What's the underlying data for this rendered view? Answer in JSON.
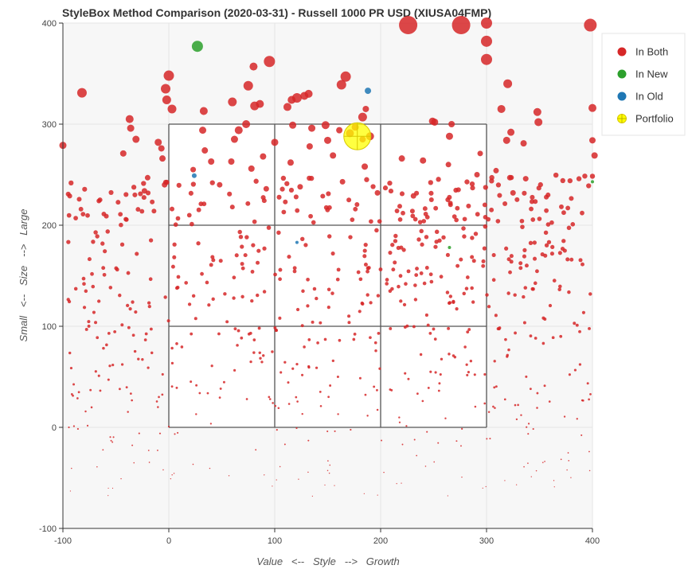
{
  "chart_data": {
    "type": "scatter",
    "title": "StyleBox Method Comparison (2020-03-31) - Russell 1000 PR USD (XIUSA04FMP)",
    "xlabel": "Value   <--   Style   -->   Growth",
    "ylabel": "Small   <--   Size   -->   Large",
    "xlim": [
      -100,
      400
    ],
    "ylim": [
      -100,
      400
    ],
    "xticks": [
      "-100",
      "0",
      "100",
      "200",
      "300",
      "400"
    ],
    "yticks": [
      "-100",
      "0",
      "100",
      "200",
      "300",
      "400"
    ],
    "grid": true,
    "legend_position": "right",
    "stylebox": {
      "x": [
        0,
        100,
        200,
        300
      ],
      "y": [
        0,
        100,
        200,
        300
      ]
    },
    "series": [
      {
        "name": "In Both",
        "color": "#d62728",
        "points": [
          [
            -82,
            331,
            6
          ],
          [
            -37,
            305,
            5
          ],
          [
            -36,
            296,
            4.5
          ],
          [
            -31,
            285,
            4.5
          ],
          [
            -100,
            279,
            4.5
          ],
          [
            -43,
            271,
            4
          ],
          [
            -10,
            282,
            4.5
          ],
          [
            -7,
            276,
            4
          ],
          [
            -6,
            266,
            4
          ],
          [
            -20,
            247,
            3.5
          ],
          [
            -23,
            234,
            3.5
          ],
          [
            -4,
            240,
            3.5
          ],
          [
            0,
            348,
            6.5
          ],
          [
            -3,
            335,
            6
          ],
          [
            -2,
            324,
            5.5
          ],
          [
            3,
            315,
            5.5
          ],
          [
            33,
            313,
            5
          ],
          [
            32,
            294,
            4.5
          ],
          [
            60,
            322,
            5.5
          ],
          [
            66,
            294,
            5
          ],
          [
            75,
            338,
            6
          ],
          [
            80,
            357,
            5
          ],
          [
            81,
            318,
            5.5
          ],
          [
            86,
            320,
            5
          ],
          [
            73,
            300,
            5
          ],
          [
            62,
            285,
            4.5
          ],
          [
            95,
            362,
            7
          ],
          [
            112,
            317,
            5
          ],
          [
            116,
            324,
            5
          ],
          [
            121,
            326,
            6
          ],
          [
            128,
            328,
            5
          ],
          [
            132,
            330,
            5
          ],
          [
            163,
            339,
            6
          ],
          [
            167,
            347,
            6.5
          ],
          [
            183,
            307,
            5.5
          ],
          [
            186,
            315,
            4
          ],
          [
            190,
            288,
            5
          ],
          [
            148,
            299,
            5
          ],
          [
            135,
            296,
            4.5
          ],
          [
            117,
            299,
            4.5
          ],
          [
            150,
            284,
            4.5
          ],
          [
            161,
            294,
            4
          ],
          [
            171,
            291,
            5
          ],
          [
            176,
            297,
            4.5
          ],
          [
            183,
            285,
            4
          ],
          [
            226,
            398,
            11.5
          ],
          [
            276,
            398,
            11.5
          ],
          [
            300,
            400,
            7
          ],
          [
            300,
            382,
            7
          ],
          [
            300,
            364,
            7
          ],
          [
            320,
            340,
            5.5
          ],
          [
            314,
            315,
            5
          ],
          [
            323,
            292,
            4.5
          ],
          [
            319,
            284,
            4.5
          ],
          [
            348,
            312,
            5
          ],
          [
            349,
            302,
            5
          ],
          [
            335,
            281,
            4
          ],
          [
            249,
            303,
            4.5
          ],
          [
            251,
            302,
            4.5
          ],
          [
            398,
            398,
            8
          ],
          [
            400,
            316,
            5
          ],
          [
            400,
            284,
            4
          ],
          [
            402,
            269,
            4
          ],
          [
            267,
            300,
            4
          ],
          [
            265,
            288,
            4.5
          ],
          [
            100,
            282,
            4.5
          ],
          [
            34,
            274,
            4
          ],
          [
            40,
            263,
            4
          ],
          [
            59,
            263,
            4
          ],
          [
            78,
            256,
            4
          ],
          [
            89,
            268,
            4
          ],
          [
            115,
            262,
            4
          ],
          [
            133,
            278,
            4
          ],
          [
            155,
            269,
            4
          ],
          [
            185,
            258,
            4
          ],
          [
            220,
            266,
            4
          ],
          [
            240,
            264,
            4
          ],
          [
            264,
            260,
            3.5
          ],
          [
            291,
            250,
            3.5
          ],
          [
            309,
            254,
            3.5
          ],
          [
            322,
            247,
            3.5
          ],
          [
            337,
            246,
            3.5
          ],
          [
            23,
            255,
            3.5
          ],
          [
            48,
            240,
            3.5
          ],
          [
            92,
            236,
            3.5
          ],
          [
            124,
            238,
            3.5
          ],
          [
            164,
            243,
            3.5
          ],
          [
            197,
            232,
            3.5
          ],
          [
            231,
            229,
            3.5
          ],
          [
            294,
            271,
            3.5
          ],
          [
            325,
            232,
            3.5
          ],
          [
            3,
            216,
            3
          ],
          [
            60,
            218,
            3
          ],
          [
            110,
            223,
            3
          ],
          [
            170,
            225,
            3
          ],
          [
            230,
            214,
            3
          ],
          [
            283,
            219,
            3
          ],
          [
            -66,
            224,
            3
          ],
          [
            -59,
            209,
            3
          ],
          [
            -14,
            214,
            3
          ]
        ]
      },
      {
        "name": "In New",
        "color": "#2ca02c",
        "points": [
          [
            27,
            377,
            7
          ],
          [
            265,
            178,
            2
          ],
          [
            400,
            243,
            2
          ]
        ]
      },
      {
        "name": "In Old",
        "color": "#1f77b4",
        "points": [
          [
            188,
            333,
            4
          ],
          [
            24,
            249,
            3
          ],
          [
            121,
            183,
            2
          ]
        ]
      },
      {
        "name": "Portfolio",
        "color": "#ffff00",
        "points": [
          [
            178,
            288,
            17
          ]
        ]
      }
    ],
    "legend": [
      "In Both",
      "In New",
      "In Old",
      "Portfolio"
    ]
  }
}
